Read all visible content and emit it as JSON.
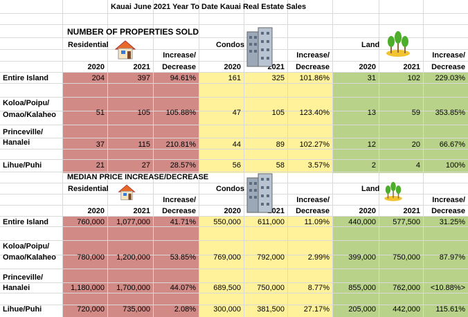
{
  "title": "Kauai June 2021 Year To Date Kauai Real Estate Sales",
  "section1": {
    "heading": "NUMBER OF PROPERTIES SOLD",
    "col_residential": "Residential",
    "col_condos": "Condos",
    "col_land": "Land",
    "increase_label": "Increase/",
    "decrease_label": "Decrease",
    "year_2020": "2020",
    "year_2021": "2021",
    "rows": [
      {
        "label1": "Entire Island",
        "label2": "",
        "res": [
          "204",
          "397",
          "94.61%"
        ],
        "con": [
          "161",
          "325",
          "101.86%"
        ],
        "land": [
          "31",
          "102",
          "229.03%"
        ]
      },
      {
        "label1": "Koloa/Poipu/",
        "label2": "Omao/Kalaheo",
        "res": [
          "51",
          "105",
          "105.88%"
        ],
        "con": [
          "47",
          "105",
          "123.40%"
        ],
        "land": [
          "13",
          "59",
          "353.85%"
        ]
      },
      {
        "label1": "Princeville/",
        "label2": "Hanalei",
        "res": [
          "37",
          "115",
          "210.81%"
        ],
        "con": [
          "44",
          "89",
          "102.27%"
        ],
        "land": [
          "12",
          "20",
          "66.67%"
        ]
      },
      {
        "label1": "Lihue/Puhi",
        "label2": "",
        "res": [
          "21",
          "27",
          "28.57%"
        ],
        "con": [
          "56",
          "58",
          "3.57%"
        ],
        "land": [
          "2",
          "4",
          "100%"
        ]
      }
    ]
  },
  "section2": {
    "heading": "MEDIAN PRICE INCREASE/DECREASE",
    "col_residential": "Residential",
    "col_condos": "Condos",
    "col_land": "Land",
    "increase_label": "Increase/",
    "decrease_label": "Decrease",
    "year_2020": "2020",
    "year_2021": "2021",
    "rows": [
      {
        "label1": "Entire Island",
        "label2": "",
        "res": [
          "760,000",
          "1,077,000",
          "41.71%"
        ],
        "con": [
          "550,000",
          "611,000",
          "11.09%"
        ],
        "land": [
          "440,000",
          "577,500",
          "31.25%"
        ]
      },
      {
        "label1": "Koloa/Poipu/",
        "label2": "Omao/Kalaheo",
        "res": [
          "780,000",
          "1,200,000",
          "53.85%"
        ],
        "con": [
          "769,000",
          "792,000",
          "2.99%"
        ],
        "land": [
          "399,000",
          "750,000",
          "87.97%"
        ]
      },
      {
        "label1": "Princeville/",
        "label2": "Hanalei",
        "res": [
          "1,180,000",
          "1,700,000",
          "44.07%"
        ],
        "con": [
          "689,500",
          "750,000",
          "8.77%"
        ],
        "land": [
          "855,000",
          "762,000",
          "<10.88%>"
        ]
      },
      {
        "label1": "Lihue/Puhi",
        "label2": "",
        "res": [
          "720,000",
          "735,000",
          "2.08%"
        ],
        "con": [
          "300,000",
          "381,500",
          "27.17%"
        ],
        "land": [
          "205,000",
          "442,000",
          "115.61%"
        ]
      }
    ]
  },
  "icons": {
    "residential": "house-icon",
    "condos": "building-icon",
    "land": "trees-icon"
  },
  "colors": {
    "residential": "#d18a86",
    "condos": "#fff29a",
    "land": "#b9d28a"
  }
}
